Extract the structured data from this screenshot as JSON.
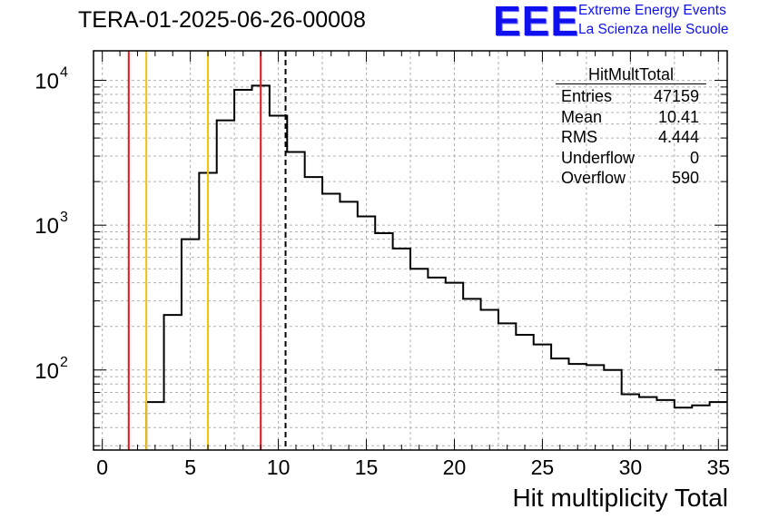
{
  "header": {
    "run_title": "TERA-01-2025-06-26-00008",
    "logo_text": "EEE",
    "logo_line1": "Extreme Energy Events",
    "logo_line2": "La Scienza nelle Scuole"
  },
  "stats_box": {
    "title": "HitMultTotal",
    "rows": [
      {
        "label": "Entries",
        "value": "47159"
      },
      {
        "label": "Mean",
        "value": "10.41"
      },
      {
        "label": "RMS",
        "value": "4.444"
      },
      {
        "label": "Underflow",
        "value": "0"
      },
      {
        "label": "Overflow",
        "value": "590"
      }
    ]
  },
  "colors": {
    "histogram": "#000000",
    "red_line": "#e8131a",
    "yellow_line": "#f5c10a",
    "mean_line": "#000000",
    "grid": "#b0b0b0"
  },
  "chart_data": {
    "type": "histogram",
    "title": "TERA-01-2025-06-26-00008",
    "xlabel": "Hit multiplicity Total",
    "ylabel": "",
    "yscale": "log",
    "xlim": [
      -0.5,
      35.5
    ],
    "ylim": [
      28,
      16000
    ],
    "x_ticks": [
      0,
      5,
      10,
      15,
      20,
      25,
      30,
      35
    ],
    "x_tick_labels": [
      "0",
      "5",
      "10",
      "15",
      "20",
      "25",
      "30",
      "35"
    ],
    "y_ticks": [
      {
        "base": "10",
        "exp": "2",
        "value": 100
      },
      {
        "base": "10",
        "exp": "3",
        "value": 1000
      },
      {
        "base": "10",
        "exp": "4",
        "value": 10000
      }
    ],
    "grid": true,
    "bin_low_edges": [
      -0.5,
      0.5,
      1.5,
      2.5,
      3.5,
      4.5,
      5.5,
      6.5,
      7.5,
      8.5,
      9.5,
      10.5,
      11.5,
      12.5,
      13.5,
      14.5,
      15.5,
      16.5,
      17.5,
      18.5,
      19.5,
      20.5,
      21.5,
      22.5,
      23.5,
      24.5,
      25.5,
      26.5,
      27.5,
      28.5,
      29.5,
      30.5,
      31.5,
      32.5,
      33.5,
      34.5
    ],
    "bin_width": 1,
    "values": [
      0,
      0,
      0,
      60,
      240,
      800,
      2300,
      5300,
      8600,
      9200,
      5700,
      3200,
      2150,
      1650,
      1450,
      1150,
      880,
      690,
      500,
      435,
      400,
      310,
      260,
      210,
      175,
      150,
      120,
      110,
      108,
      100,
      68,
      65,
      62,
      55,
      57,
      60
    ],
    "vertical_lines": [
      {
        "x": 1.5,
        "color": "red",
        "style": "solid"
      },
      {
        "x": 2.5,
        "color": "yellow",
        "style": "solid"
      },
      {
        "x": 6.0,
        "color": "yellow",
        "style": "solid"
      },
      {
        "x": 9.0,
        "color": "red",
        "style": "solid"
      },
      {
        "x": 10.41,
        "color": "black",
        "style": "dashed"
      }
    ]
  }
}
